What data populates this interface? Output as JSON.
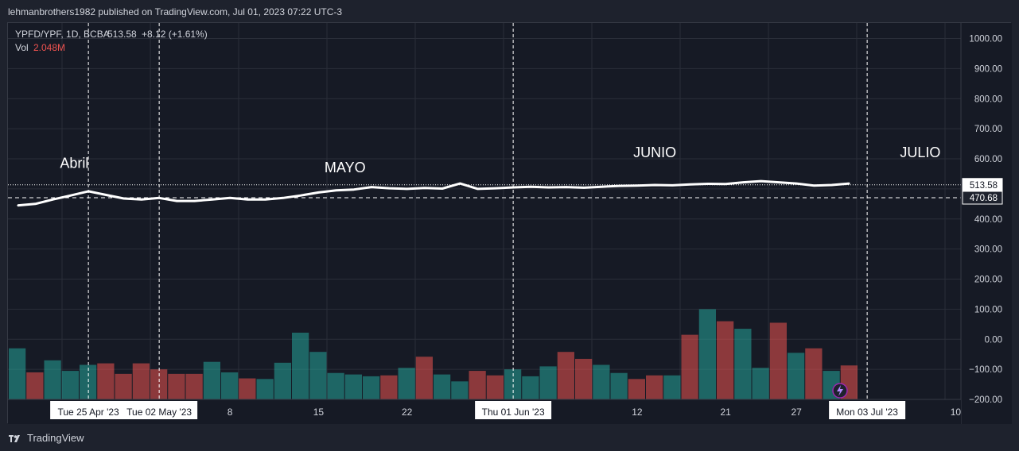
{
  "header": {
    "publisher": "lehmanbrothers1982 published on TradingView.com, Jul 01, 2023 07:22 UTC-3"
  },
  "footer": {
    "brand": "TradingView",
    "logo_icon": "tradingview-logo-icon"
  },
  "legend": {
    "symbol": "YPFD/YPF, 1D, BCBA",
    "last": "513.58",
    "change": "+8.12 (+1.61%)",
    "vol_label": "Vol",
    "vol_value": "2.048M"
  },
  "colors": {
    "up": "#26a69a",
    "down": "#ef5350",
    "line": "#ffffff",
    "background": "#161a25",
    "grid": "#2a2e39",
    "text": "#d1d4dc"
  },
  "chart_data": {
    "type": "line",
    "title": "YPFD/YPF, 1D, BCBA",
    "y_range": [
      -200,
      1050
    ],
    "y_ticks": [
      "1000.00",
      "900.00",
      "800.00",
      "700.00",
      "600.00",
      "500.00",
      "400.00",
      "300.00",
      "200.00",
      "100.00",
      "0.00",
      "−100.00",
      "−200.00"
    ],
    "y_tick_values": [
      1000,
      900,
      800,
      700,
      600,
      500,
      400,
      300,
      200,
      100,
      0,
      -100,
      -200
    ],
    "x_ticks": [
      {
        "label": "8",
        "i": 12
      },
      {
        "label": "15",
        "i": 17
      },
      {
        "label": "22",
        "i": 22
      },
      {
        "label": "12",
        "i": 35
      },
      {
        "label": "21",
        "i": 40
      },
      {
        "label": "27",
        "i": 44
      },
      {
        "label": "10",
        "i": 53
      }
    ],
    "x_highlight_labels": [
      {
        "label": "Tue 25 Apr '23",
        "i": 4
      },
      {
        "label": "Tue 02 May '23",
        "i": 8
      },
      {
        "label": "Thu 01 Jun '23",
        "i": 28
      },
      {
        "label": "Mon 03 Jul '23",
        "i": 48
      }
    ],
    "vertical_markers": [
      4,
      8,
      28,
      48
    ],
    "series": [
      {
        "values": [
          445,
          450,
          465,
          478,
          492,
          480,
          468,
          465,
          470,
          460,
          460,
          465,
          470,
          465,
          465,
          470,
          478,
          488,
          495,
          498,
          506,
          502,
          500,
          503,
          501,
          518,
          500,
          502,
          505,
          507,
          505,
          506,
          504,
          507,
          510,
          511,
          513,
          512,
          515,
          517,
          516,
          522,
          526,
          522,
          518,
          511,
          513,
          518
        ]
      }
    ],
    "volume": [
      {
        "v": -30,
        "dir": "up"
      },
      {
        "v": -110,
        "dir": "down"
      },
      {
        "v": -70,
        "dir": "up"
      },
      {
        "v": -105,
        "dir": "up"
      },
      {
        "v": -85,
        "dir": "up"
      },
      {
        "v": -80,
        "dir": "down"
      },
      {
        "v": -115,
        "dir": "down"
      },
      {
        "v": -80,
        "dir": "down"
      },
      {
        "v": -100,
        "dir": "down"
      },
      {
        "v": -115,
        "dir": "down"
      },
      {
        "v": -115,
        "dir": "down"
      },
      {
        "v": -75,
        "dir": "up"
      },
      {
        "v": -110,
        "dir": "up"
      },
      {
        "v": -130,
        "dir": "down"
      },
      {
        "v": -132,
        "dir": "up"
      },
      {
        "v": -78,
        "dir": "up"
      },
      {
        "v": 22,
        "dir": "up"
      },
      {
        "v": -42,
        "dir": "up"
      },
      {
        "v": -112,
        "dir": "up"
      },
      {
        "v": -117,
        "dir": "up"
      },
      {
        "v": -123,
        "dir": "up"
      },
      {
        "v": -120,
        "dir": "down"
      },
      {
        "v": -95,
        "dir": "up"
      },
      {
        "v": -58,
        "dir": "down"
      },
      {
        "v": -117,
        "dir": "up"
      },
      {
        "v": -140,
        "dir": "up"
      },
      {
        "v": -105,
        "dir": "down"
      },
      {
        "v": -120,
        "dir": "down"
      },
      {
        "v": -100,
        "dir": "up"
      },
      {
        "v": -123,
        "dir": "up"
      },
      {
        "v": -90,
        "dir": "up"
      },
      {
        "v": -42,
        "dir": "down"
      },
      {
        "v": -65,
        "dir": "down"
      },
      {
        "v": -85,
        "dir": "up"
      },
      {
        "v": -112,
        "dir": "up"
      },
      {
        "v": -132,
        "dir": "down"
      },
      {
        "v": -120,
        "dir": "down"
      },
      {
        "v": -120,
        "dir": "up"
      },
      {
        "v": 15,
        "dir": "down"
      },
      {
        "v": 100,
        "dir": "up"
      },
      {
        "v": 60,
        "dir": "down"
      },
      {
        "v": 35,
        "dir": "up"
      },
      {
        "v": -95,
        "dir": "up"
      },
      {
        "v": 55,
        "dir": "down"
      },
      {
        "v": -45,
        "dir": "up"
      },
      {
        "v": -30,
        "dir": "down"
      },
      {
        "v": -105,
        "dir": "up"
      },
      {
        "v": -87,
        "dir": "down"
      }
    ],
    "price_labels": [
      {
        "label": "513.58",
        "v": 513.58,
        "style": "dotted"
      },
      {
        "label": "470.68",
        "v": 470.68,
        "style": "dashed"
      }
    ],
    "annotations": [
      {
        "text": "Abril",
        "i": 3.2,
        "y": 570
      },
      {
        "text": "MAYO",
        "i": 18.5,
        "y": 555
      },
      {
        "text": "JUNIO",
        "i": 36.0,
        "y": 605
      },
      {
        "text": "JULIO",
        "i": 51.0,
        "y": 605
      }
    ]
  }
}
